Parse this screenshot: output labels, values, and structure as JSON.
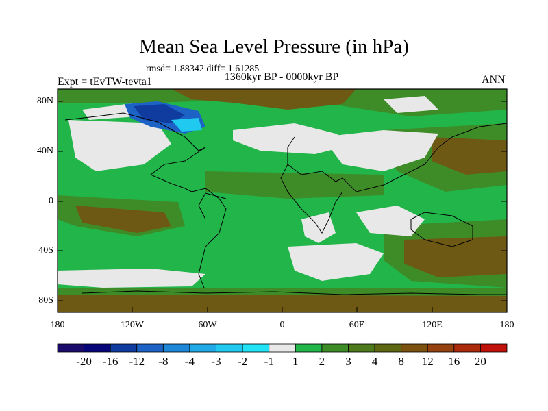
{
  "title": "Mean Sea Level Pressure (in hPa)",
  "stats": "rmsd= 1.88342 diff= 1.61285",
  "period": "1360kyr BP - 0000kyr BP",
  "experiment": "Expt = tEvTW-tevta1",
  "season": "ANN",
  "lat_labels": [
    "80N",
    "40N",
    "0",
    "40S",
    "80S"
  ],
  "lon_labels": [
    "180",
    "120W",
    "60W",
    "0",
    "60E",
    "120E",
    "180"
  ],
  "colorbar": {
    "colors": [
      "#1a0a6b",
      "#06067a",
      "#0f3c9e",
      "#1d63c6",
      "#1f87d8",
      "#1fa9e6",
      "#20c9f0",
      "#22e3f5",
      "#e8e8e8",
      "#22b64a",
      "#3e8c28",
      "#4c7a1c",
      "#5e6812",
      "#7c5210",
      "#954110",
      "#ac2a0c",
      "#c0120a"
    ],
    "labels": [
      "-20",
      "-16",
      "-12",
      "-8",
      "-4",
      "-3",
      "-2",
      "-1",
      "1",
      "2",
      "3",
      "4",
      "8",
      "12",
      "16",
      "20"
    ]
  },
  "map_colors": {
    "background": "#22b64a",
    "neutral": "#e8e8e8",
    "olive": "#3e8c28",
    "brown": "#6d5914",
    "darkbrown": "#7c5210",
    "blue": "#0f3c9e",
    "cyan": "#20c9f0"
  }
}
